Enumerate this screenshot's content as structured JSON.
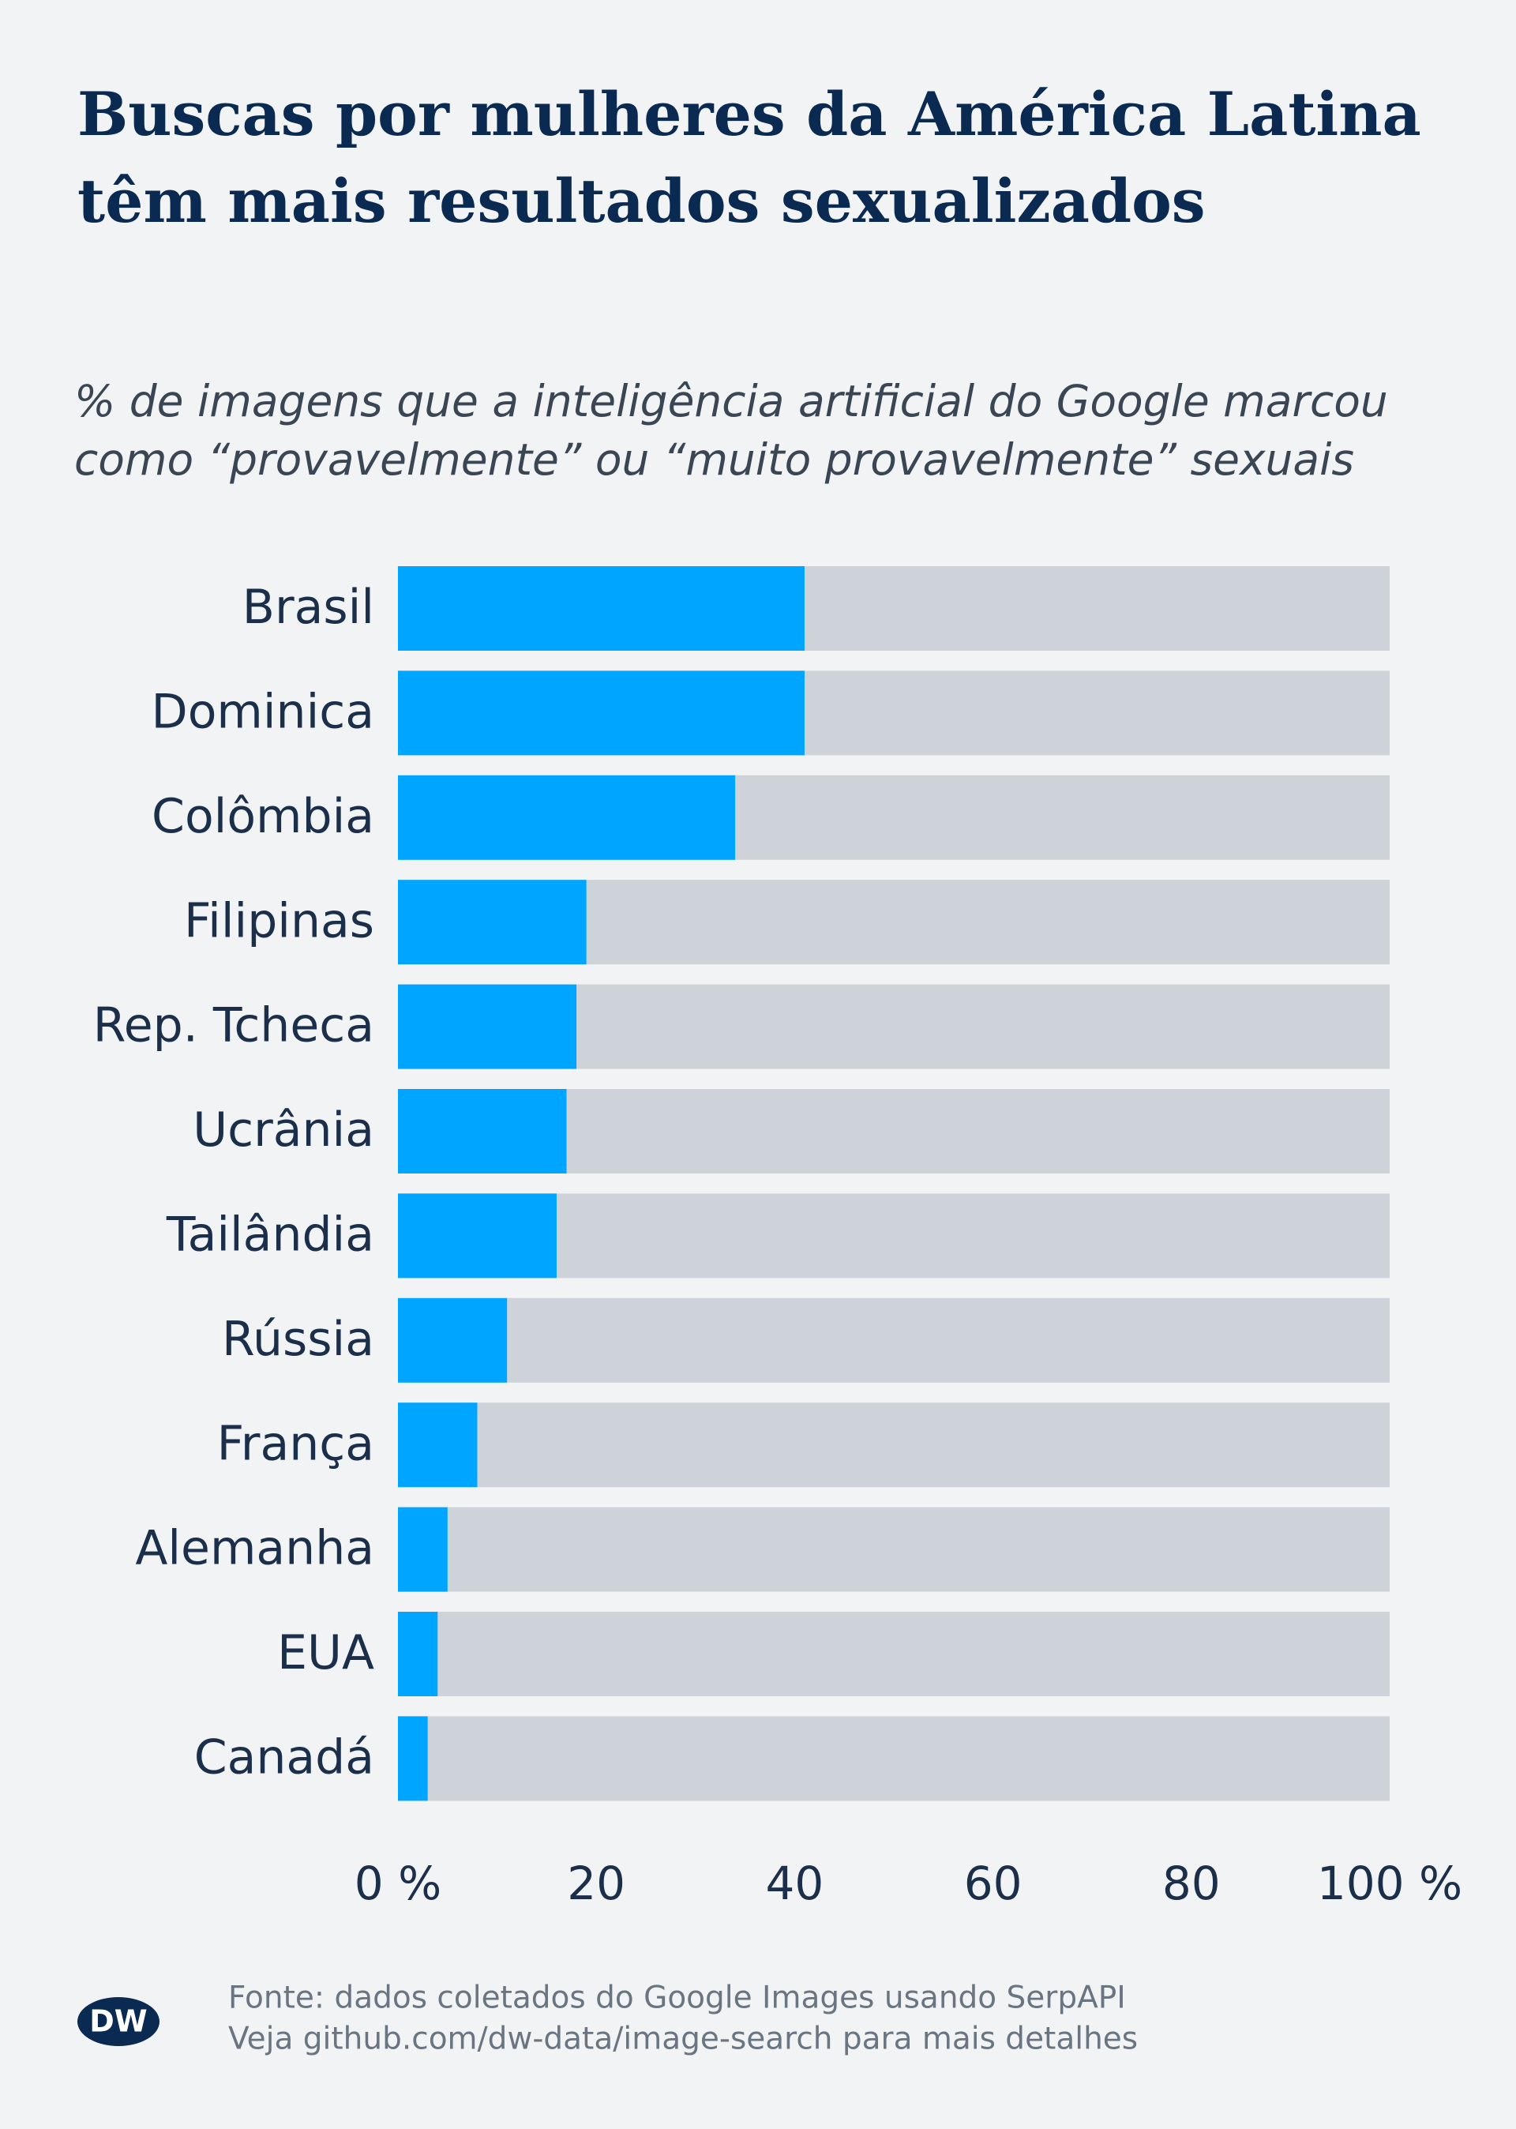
{
  "chart_data": {
    "type": "bar",
    "title": [
      "Buscas por mulheres da América Latina",
      "têm mais resultados sexualizados"
    ],
    "subtitle": [
      "% de imagens que a inteligência artificial do Google marcou",
      "como “provavelmente” ou “muito provavelmente” sexuais"
    ],
    "categories": [
      "Brasil",
      "Dominica",
      "Colômbia",
      "Filipinas",
      "Rep. Tcheca",
      "Ucrânia",
      "Tailândia",
      "Rússia",
      "França",
      "Alemanha",
      "EUA",
      "Canadá"
    ],
    "values": [
      41,
      41,
      34,
      19,
      18,
      17,
      16,
      11,
      8,
      5,
      4,
      3
    ],
    "color": "#00a5ff",
    "track_color": "#cdd3d9",
    "xlim": [
      0,
      100
    ],
    "xticks": [
      {
        "value": 0,
        "label": "0 %"
      },
      20,
      40,
      60,
      80,
      {
        "value": 100,
        "label": "100 %"
      }
    ],
    "source": [
      "Fonte: dados coletados do Google Images usando SerpAPI",
      "Veja github.com/dw-data/image-search para mais detalhes"
    ],
    "logo": "DW"
  }
}
